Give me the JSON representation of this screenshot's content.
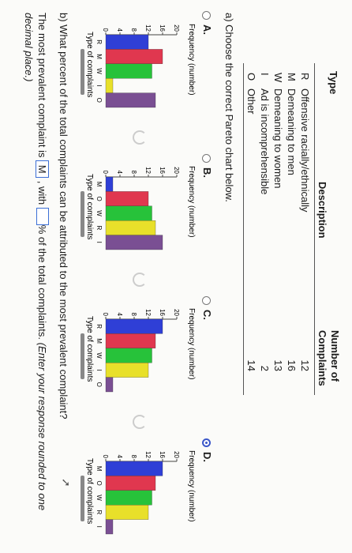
{
  "table": {
    "headers": {
      "type": "Type",
      "description": "Description",
      "count_line1": "Number of",
      "count_line2": "Complaints"
    },
    "rows": [
      {
        "code": "R",
        "description": "Offensive racially/ethnically",
        "count": "12"
      },
      {
        "code": "M",
        "description": "Demeaning to men",
        "count": "16"
      },
      {
        "code": "W",
        "description": "Demeaning to women",
        "count": "13"
      },
      {
        "code": "I",
        "description": "Ad is incomprehensible",
        "count": "2"
      },
      {
        "code": "O",
        "description": "Other",
        "count": "14"
      }
    ]
  },
  "part_a": {
    "prompt": "a) Choose the correct Pareto chart below."
  },
  "options": [
    {
      "label": "A.",
      "selected": false
    },
    {
      "label": "B.",
      "selected": false
    },
    {
      "label": "C.",
      "selected": false
    },
    {
      "label": "D.",
      "selected": true
    }
  ],
  "chart_data": [
    {
      "type": "bar",
      "ylabel": "Frequency (number)",
      "xlabel": "Type of complaints",
      "yticks": [
        "0",
        "4",
        "8",
        "12",
        "16",
        "20"
      ],
      "ylim": [
        0,
        20
      ],
      "categories": [
        "R",
        "M",
        "W",
        "I",
        "O"
      ],
      "values": [
        12,
        16,
        13,
        2,
        14
      ],
      "colors": [
        "#2f3fd6",
        "#e0374f",
        "#27c23a",
        "#e8e02a",
        "#7a4f93"
      ]
    },
    {
      "type": "bar",
      "ylabel": "Frequency (number)",
      "xlabel": "Type of complaints",
      "yticks": [
        "0",
        "4",
        "8",
        "12",
        "16",
        "20"
      ],
      "ylim": [
        0,
        20
      ],
      "categories": [
        "M",
        "O",
        "W",
        "R",
        "I"
      ],
      "values": [
        2,
        12,
        13,
        14,
        16
      ],
      "colors": [
        "#2f3fd6",
        "#e0374f",
        "#27c23a",
        "#e8e02a",
        "#7a4f93"
      ]
    },
    {
      "type": "bar",
      "ylabel": "Frequency (number)",
      "xlabel": "Type of complaints",
      "yticks": [
        "0",
        "4",
        "8",
        "12",
        "16",
        "20"
      ],
      "ylim": [
        0,
        20
      ],
      "categories": [
        "R",
        "M",
        "W",
        "I",
        "O"
      ],
      "values": [
        16,
        14,
        13,
        12,
        2
      ],
      "colors": [
        "#2f3fd6",
        "#e0374f",
        "#27c23a",
        "#e8e02a",
        "#7a4f93"
      ]
    },
    {
      "type": "bar",
      "ylabel": "Frequency (number)",
      "xlabel": "Type of complaints",
      "yticks": [
        "0",
        "4",
        "8",
        "12",
        "16",
        "20"
      ],
      "ylim": [
        0,
        20
      ],
      "categories": [
        "M",
        "O",
        "W",
        "R",
        "I"
      ],
      "values": [
        16,
        14,
        13,
        12,
        2
      ],
      "colors": [
        "#2f3fd6",
        "#e0374f",
        "#27c23a",
        "#e8e02a",
        "#7a4f93"
      ]
    }
  ],
  "part_b": {
    "question": "b) What percent of the total complaints can be attributed to the most prevalent complaint?",
    "answer_pre": "The most prevalent complaint is",
    "answer_value": "M",
    "answer_mid": ", with",
    "answer_post": "% of the total complaints.",
    "instruction": "(Enter your response rounded to one",
    "instruction2": "decimal place.)"
  }
}
